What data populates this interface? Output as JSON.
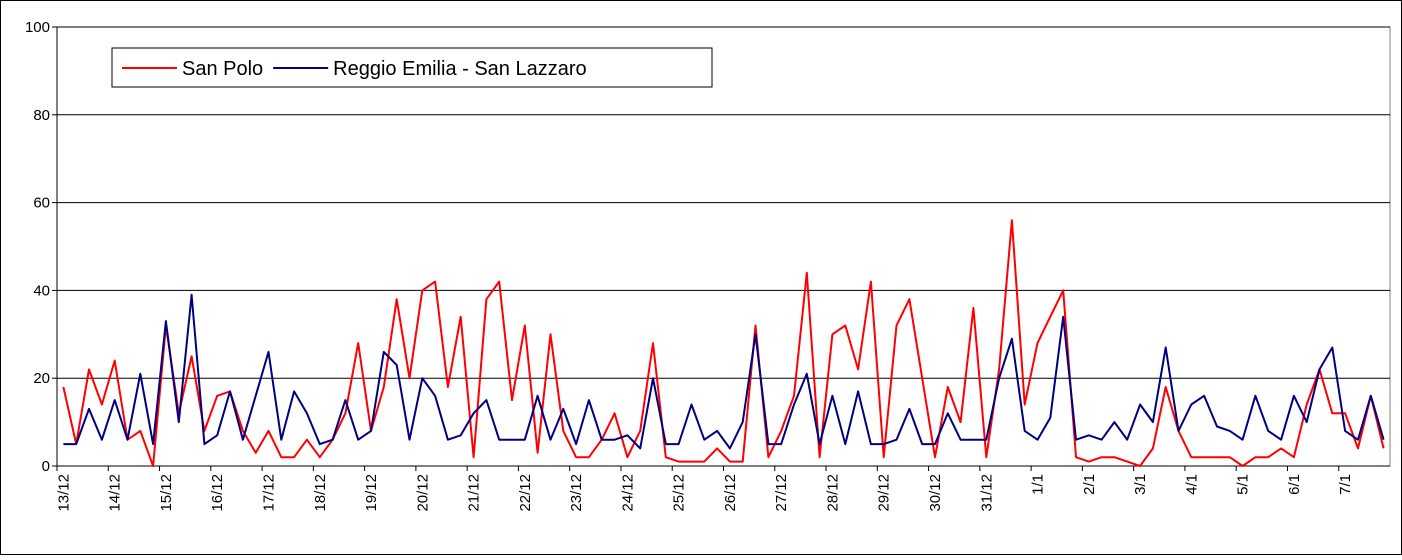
{
  "chart_data": {
    "type": "line",
    "categories": [
      "13/12",
      null,
      null,
      null,
      "14/12",
      null,
      null,
      null,
      "15/12",
      null,
      null,
      null,
      "16/12",
      null,
      null,
      null,
      "17/12",
      null,
      null,
      null,
      "18/12",
      null,
      null,
      null,
      "19/12",
      null,
      null,
      null,
      "20/12",
      null,
      null,
      null,
      "21/12",
      null,
      null,
      null,
      "22/12",
      null,
      null,
      null,
      "23/12",
      null,
      null,
      null,
      "24/12",
      null,
      null,
      null,
      "25/12",
      null,
      null,
      null,
      "26/12",
      null,
      null,
      null,
      "27/12",
      null,
      null,
      null,
      "28/12",
      null,
      null,
      null,
      "29/12",
      null,
      null,
      null,
      "30/12",
      null,
      null,
      null,
      "31/12",
      null,
      null,
      null,
      "1/1",
      null,
      null,
      null,
      "2/1",
      null,
      null,
      null,
      "3/1",
      null,
      null,
      null,
      "4/1",
      null,
      null,
      null,
      "5/1",
      null,
      null,
      null,
      "6/1",
      null,
      null,
      null,
      "7/1",
      null,
      null,
      null
    ],
    "series": [
      {
        "name": "San Polo",
        "color": "#ff0000",
        "values": [
          18,
          5,
          22,
          14,
          24,
          6,
          8,
          0,
          32,
          12,
          25,
          8,
          16,
          17,
          8,
          3,
          8,
          2,
          2,
          6,
          2,
          6,
          12,
          28,
          8,
          18,
          38,
          20,
          40,
          42,
          18,
          34,
          2,
          38,
          42,
          15,
          32,
          3,
          30,
          8,
          2,
          2,
          6,
          12,
          2,
          8,
          28,
          2,
          1,
          1,
          1,
          4,
          1,
          1,
          32,
          2,
          8,
          16,
          44,
          2,
          30,
          32,
          22,
          42,
          2,
          32,
          38,
          20,
          2,
          18,
          10,
          36,
          2,
          22,
          56,
          14,
          28,
          34,
          40,
          2,
          1,
          2,
          2,
          1,
          0,
          4,
          18,
          8,
          2,
          2,
          2,
          2,
          0,
          2,
          2,
          4,
          2,
          14,
          22,
          12,
          12,
          4,
          16,
          4
        ]
      },
      {
        "name": "Reggio Emilia - San Lazzaro",
        "color": "#000080",
        "values": [
          5,
          5,
          13,
          6,
          15,
          6,
          21,
          5,
          33,
          10,
          39,
          5,
          7,
          17,
          6,
          16,
          26,
          6,
          17,
          12,
          5,
          6,
          15,
          6,
          8,
          26,
          23,
          6,
          20,
          16,
          6,
          7,
          12,
          15,
          6,
          6,
          6,
          16,
          6,
          13,
          5,
          15,
          6,
          6,
          7,
          4,
          20,
          5,
          5,
          14,
          6,
          8,
          4,
          10,
          30,
          5,
          5,
          14,
          21,
          5,
          16,
          5,
          17,
          5,
          5,
          6,
          13,
          5,
          5,
          12,
          6,
          6,
          6,
          20,
          29,
          8,
          6,
          11,
          34,
          6,
          7,
          6,
          10,
          6,
          14,
          10,
          27,
          8,
          14,
          16,
          9,
          8,
          6,
          16,
          8,
          6,
          16,
          10,
          22,
          27,
          8,
          6,
          16,
          6
        ]
      }
    ],
    "ylim": [
      0,
      100
    ],
    "yticks": [
      0,
      20,
      40,
      60,
      80,
      100
    ],
    "grid": true,
    "legend": "top-left"
  }
}
